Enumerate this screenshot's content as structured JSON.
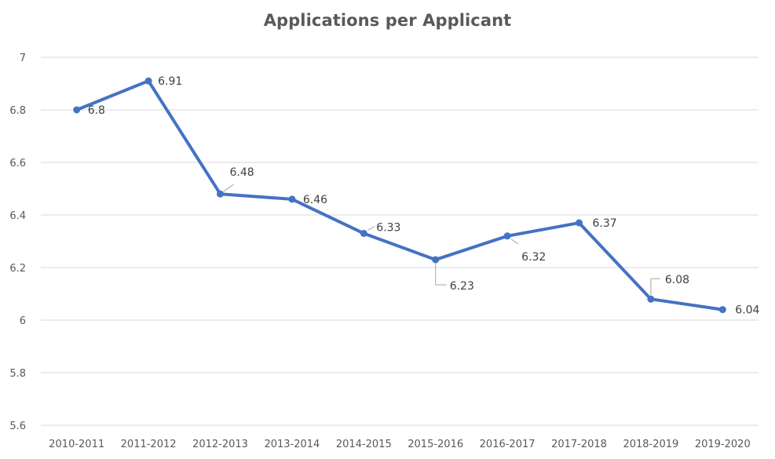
{
  "chart_data": {
    "type": "line",
    "title": "Applications per Applicant",
    "xlabel": "",
    "ylabel": "",
    "categories": [
      "2010-2011",
      "2011-2012",
      "2012-2013",
      "2013-2014",
      "2014-2015",
      "2015-2016",
      "2016-2017",
      "2017-2018",
      "2018-2019",
      "2019-2020"
    ],
    "series": [
      {
        "values": [
          6.8,
          6.91,
          6.48,
          6.46,
          6.33,
          6.23,
          6.32,
          6.37,
          6.08,
          6.04
        ],
        "color": "#4472C4",
        "data_labels": [
          "6.8",
          "6.91",
          "6.48",
          "6.46",
          "6.33",
          "6.23",
          "6.32",
          "6.37",
          "6.08",
          "6.04"
        ]
      }
    ],
    "y_ticks": [
      "5.6",
      "5.8",
      "6",
      "6.2",
      "6.4",
      "6.6",
      "6.8",
      "7"
    ],
    "ylim": [
      5.6,
      7.0
    ],
    "grid": true,
    "legend": "none",
    "colors": {
      "line": "#4472C4",
      "grid": "#D9D9D9",
      "text": "#595959",
      "label": "#404040",
      "leader": "#A6A6A6"
    }
  }
}
